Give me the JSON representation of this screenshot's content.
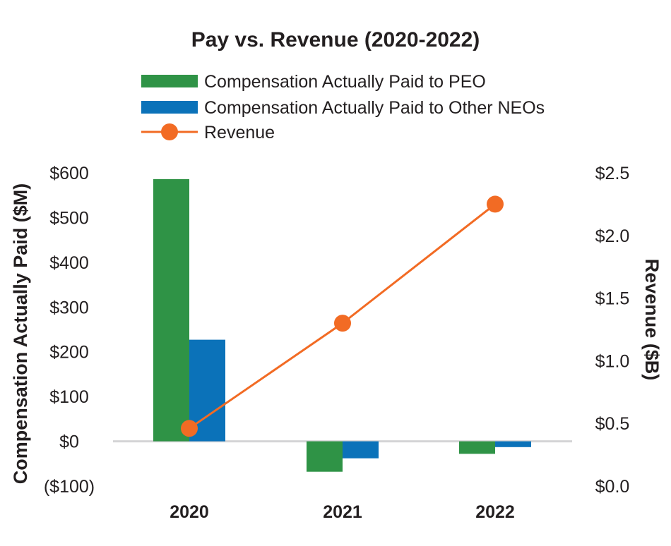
{
  "chart_data": {
    "type": "bar",
    "title": "Pay vs. Revenue (2020-2022)",
    "categories": [
      "2020",
      "2021",
      "2022"
    ],
    "series": [
      {
        "name": "Compensation Actually Paid to PEO",
        "type": "bar",
        "axis": "left",
        "color": "#2f9346",
        "values": [
          586,
          -68,
          -28
        ]
      },
      {
        "name": "Compensation Actually Paid to Other NEOs",
        "type": "bar",
        "axis": "left",
        "color": "#0b72b9",
        "values": [
          227,
          -38,
          -13
        ]
      },
      {
        "name": "Revenue",
        "type": "line",
        "axis": "right",
        "color": "#f26b24",
        "values": [
          0.46,
          1.3,
          2.25
        ]
      }
    ],
    "ylabel": "Compensation Actually Paid ($M)",
    "y2label": "Revenue ($B)",
    "ylim": [
      -100,
      600
    ],
    "y2lim": [
      0,
      2.5
    ],
    "yticks": [
      "($100)",
      "$0",
      "$100",
      "$200",
      "$300",
      "$400",
      "$500",
      "$600"
    ],
    "y2ticks": [
      "$0.0",
      "$0.5",
      "$1.0",
      "$1.5",
      "$2.0",
      "$2.5"
    ],
    "legend_position": "top",
    "grid": false
  }
}
